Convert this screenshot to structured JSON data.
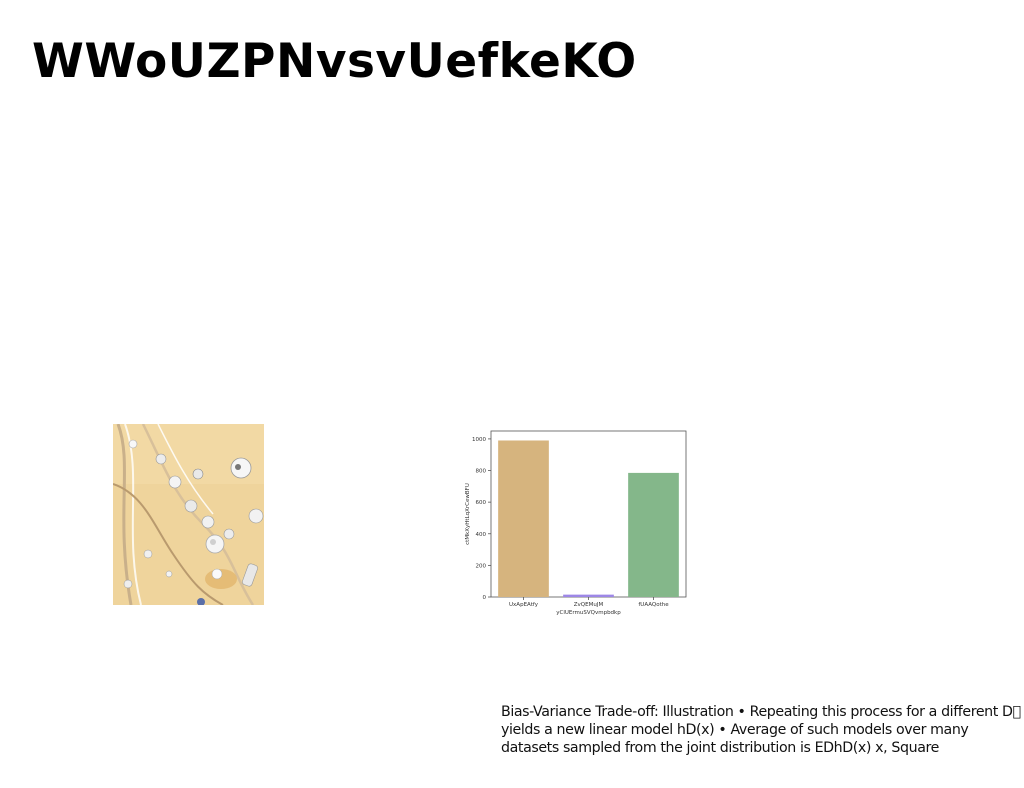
{
  "slide": {
    "title": "WWoUZPNvsvUefkeKO",
    "caption": "Bias-Variance Trade-off: Illustration • Repeating this process for a different D\u0000 yields a new linear model hD(x) • Average of such models over many datasets sampled from the joint distribution is EDhD(x) x, Square"
  },
  "photo": {
    "icon": "jewelry-photo",
    "background_color": "#efd49c"
  },
  "chart_data": {
    "type": "bar",
    "categories": [
      "UxApEAtfy",
      "ZvQEMuJM",
      "fUAAQothe"
    ],
    "values": [
      990,
      15,
      785
    ],
    "colors": [
      "#d6b47e",
      "#9d87e6",
      "#84b78a"
    ],
    "xlabel": "yClUErmuSVQvmpbdkp",
    "ylabel": "ctMkXyHtLqXrCewBFU",
    "ylim": [
      0,
      1050
    ],
    "yticks": [
      0,
      200,
      400,
      600,
      800,
      1000
    ],
    "grid": false
  }
}
